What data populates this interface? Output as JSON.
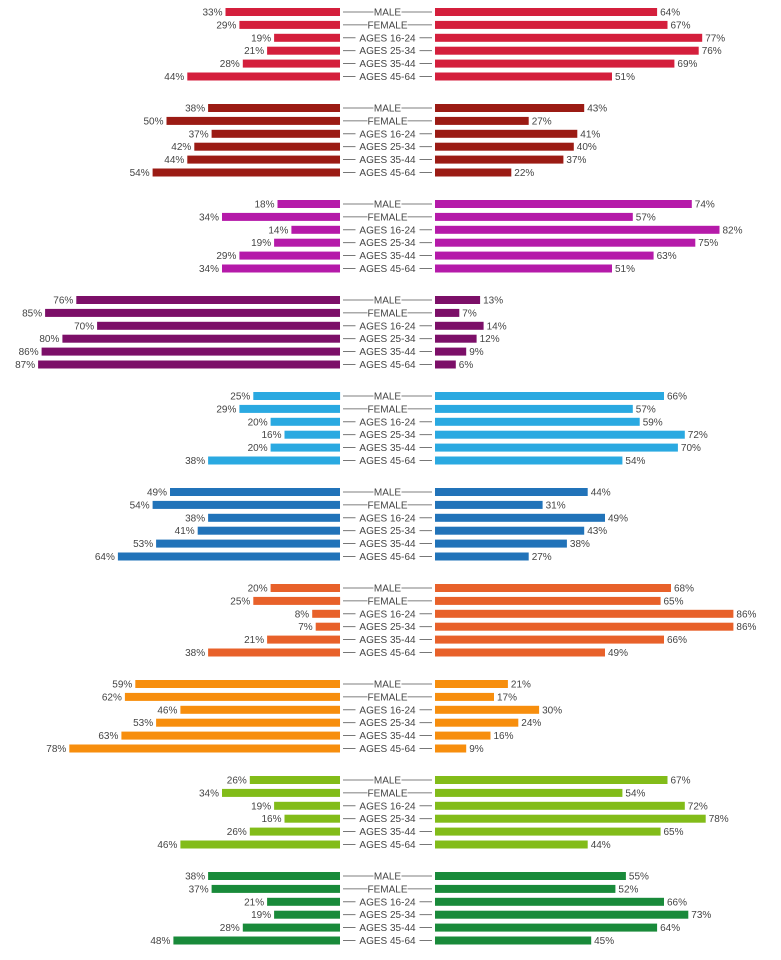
{
  "chart_data": {
    "type": "bar",
    "categories": [
      "MALE",
      "FEMALE",
      "AGES 16-24",
      "AGES 25-34",
      "AGES 35-44",
      "AGES 45-64"
    ],
    "unit": "%",
    "xlim": [
      0,
      100
    ],
    "groups": [
      {
        "color": "#d41f3c",
        "left": [
          33,
          29,
          19,
          21,
          28,
          44
        ],
        "right": [
          64,
          67,
          77,
          76,
          69,
          51
        ]
      },
      {
        "color": "#9b1b14",
        "left": [
          38,
          50,
          37,
          42,
          44,
          54
        ],
        "right": [
          43,
          27,
          41,
          40,
          37,
          22
        ]
      },
      {
        "color": "#b51aa9",
        "left": [
          18,
          34,
          14,
          19,
          29,
          34
        ],
        "right": [
          74,
          57,
          82,
          75,
          63,
          51
        ]
      },
      {
        "color": "#7c0f68",
        "left": [
          76,
          85,
          70,
          80,
          86,
          87
        ],
        "right": [
          13,
          7,
          14,
          12,
          9,
          6
        ]
      },
      {
        "color": "#2aa9e1",
        "left": [
          25,
          29,
          20,
          16,
          20,
          38
        ],
        "right": [
          66,
          57,
          59,
          72,
          70,
          54
        ]
      },
      {
        "color": "#2173b9",
        "left": [
          49,
          54,
          38,
          41,
          53,
          64
        ],
        "right": [
          44,
          31,
          49,
          43,
          38,
          27
        ]
      },
      {
        "color": "#e8612a",
        "left": [
          20,
          25,
          8,
          7,
          21,
          38
        ],
        "right": [
          68,
          65,
          86,
          86,
          66,
          49
        ]
      },
      {
        "color": "#f78e0d",
        "left": [
          59,
          62,
          46,
          53,
          63,
          78
        ],
        "right": [
          21,
          17,
          30,
          24,
          16,
          9
        ]
      },
      {
        "color": "#82bc19",
        "left": [
          26,
          34,
          19,
          16,
          26,
          46
        ],
        "right": [
          67,
          54,
          72,
          78,
          65,
          44
        ]
      },
      {
        "color": "#198a3a",
        "left": [
          38,
          37,
          21,
          19,
          28,
          48
        ],
        "right": [
          55,
          52,
          66,
          73,
          64,
          45
        ]
      }
    ]
  }
}
